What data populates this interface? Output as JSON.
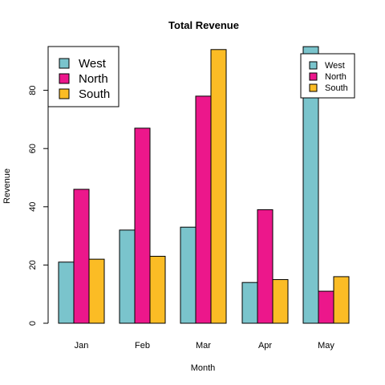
{
  "chart_data": {
    "type": "bar",
    "title": "Total Revenue",
    "xlabel": "Month",
    "ylabel": "Revenue",
    "categories": [
      "Jan",
      "Feb",
      "Mar",
      "Apr",
      "May"
    ],
    "series": [
      {
        "name": "West",
        "color": "#7ac4cc",
        "values": [
          21,
          32,
          33,
          14,
          95
        ]
      },
      {
        "name": "North",
        "color": "#ec178b",
        "values": [
          46,
          67,
          78,
          39,
          11
        ]
      },
      {
        "name": "South",
        "color": "#fbbc25",
        "values": [
          22,
          23,
          94,
          15,
          16
        ]
      }
    ],
    "ylim": [
      0,
      95
    ],
    "yticks": [
      0,
      20,
      40,
      60,
      80
    ],
    "legends": [
      {
        "placement": "top-left",
        "entries": [
          "West",
          "North",
          "South"
        ]
      },
      {
        "placement": "top-right",
        "entries": [
          "West",
          "North",
          "South"
        ]
      }
    ]
  }
}
